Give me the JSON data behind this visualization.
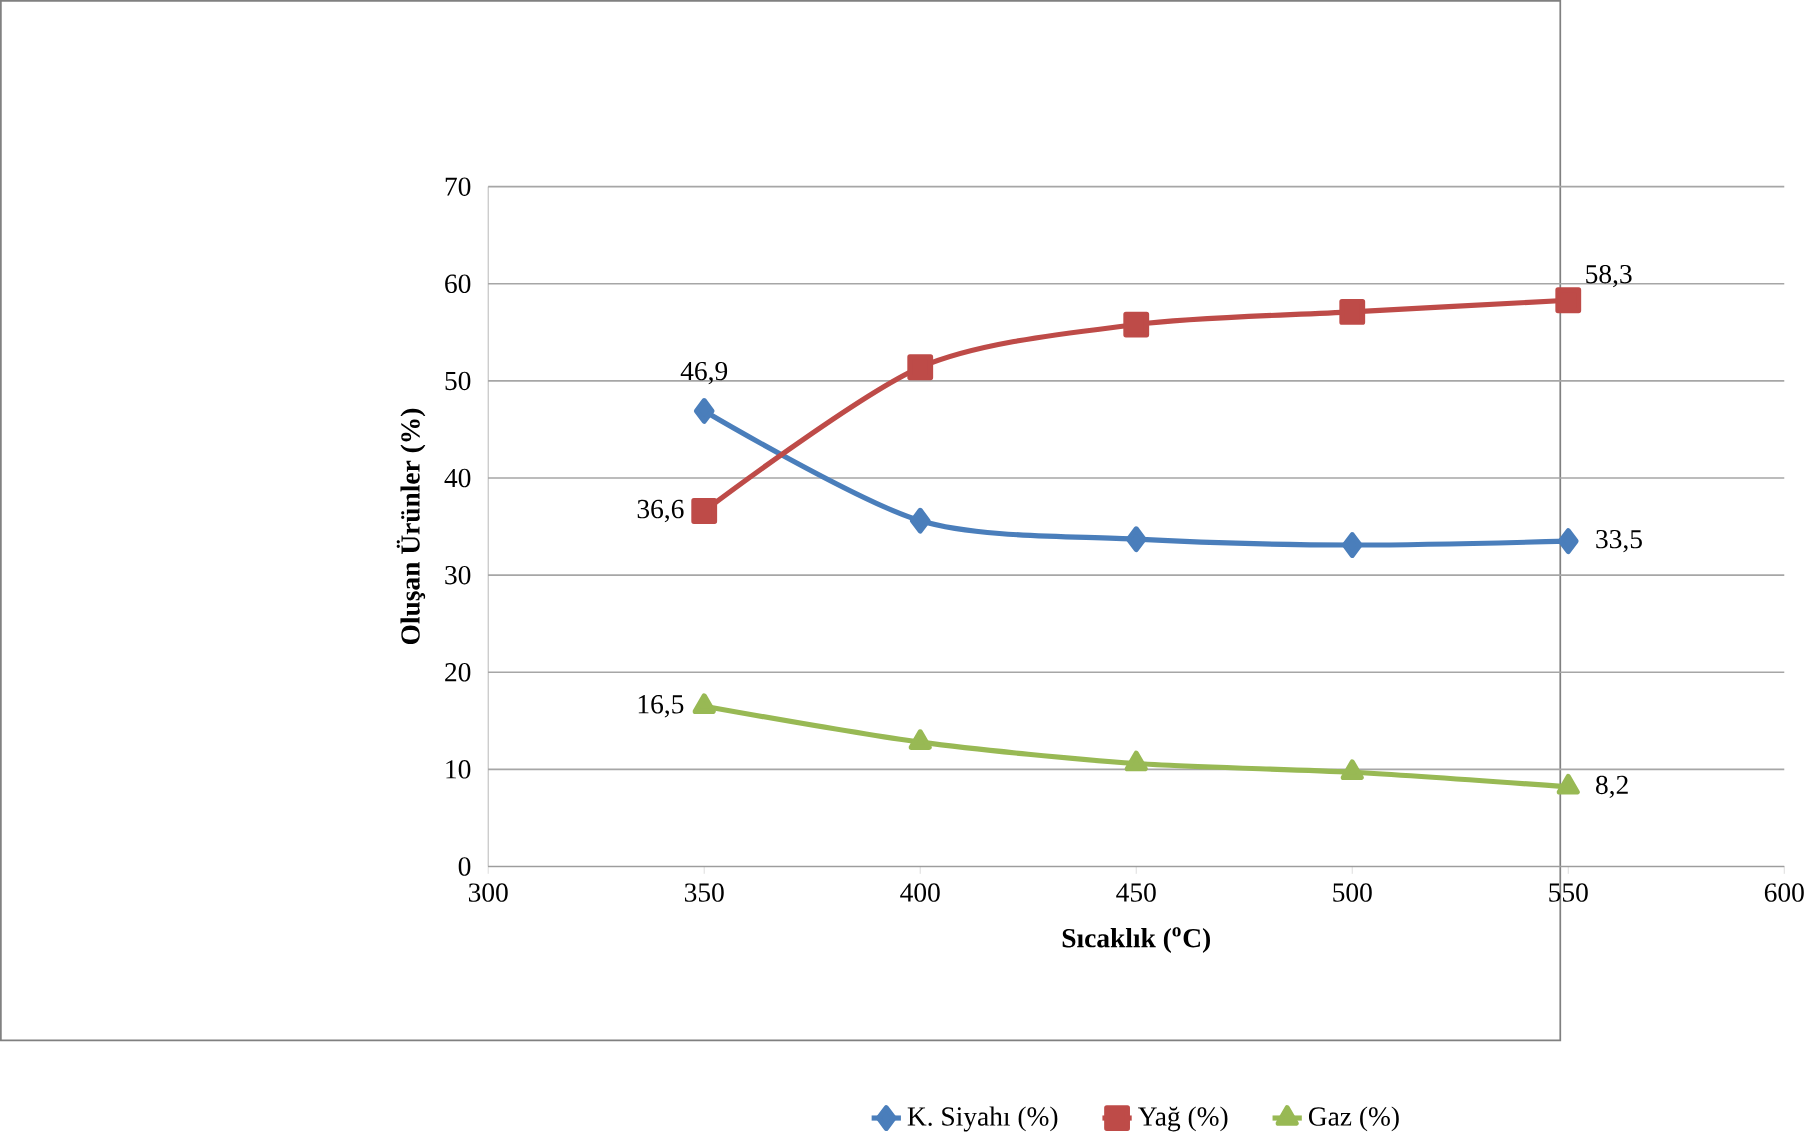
{
  "chart_data": {
    "type": "line",
    "xlabel": "Sıcaklık ($^{o}$C)",
    "ylabel": "Oluşan Ürünler (%)",
    "x": [
      350,
      400,
      450,
      500,
      550
    ],
    "series": [
      {
        "name": "K. Siyahı (%)",
        "color": "#4a7ebb",
        "marker": "diamond",
        "values": [
          46.9,
          35.6,
          33.7,
          33.1,
          33.5
        ],
        "value_labels": [
          "46,9",
          null,
          null,
          null,
          "33,5"
        ]
      },
      {
        "name": "Yağ (%)",
        "color": "#be4b48",
        "marker": "square",
        "values": [
          36.6,
          51.4,
          55.8,
          57.1,
          58.3
        ],
        "value_labels": [
          "36,6",
          null,
          null,
          null,
          "58,3"
        ]
      },
      {
        "name": "Gaz (%)",
        "color": "#98b954",
        "marker": "triangle",
        "values": [
          16.5,
          12.8,
          10.6,
          9.7,
          8.2
        ],
        "value_labels": [
          "16,5",
          null,
          null,
          null,
          "8,2"
        ]
      }
    ],
    "xlim": [
      300,
      600
    ],
    "ylim": [
      0,
      70
    ],
    "xticks": [
      300,
      350,
      400,
      450,
      500,
      550,
      600
    ],
    "yticks": [
      0,
      10,
      20,
      30,
      40,
      50,
      60,
      70
    ],
    "grid": "y",
    "legend": "bottom",
    "line_style": "solid"
  }
}
